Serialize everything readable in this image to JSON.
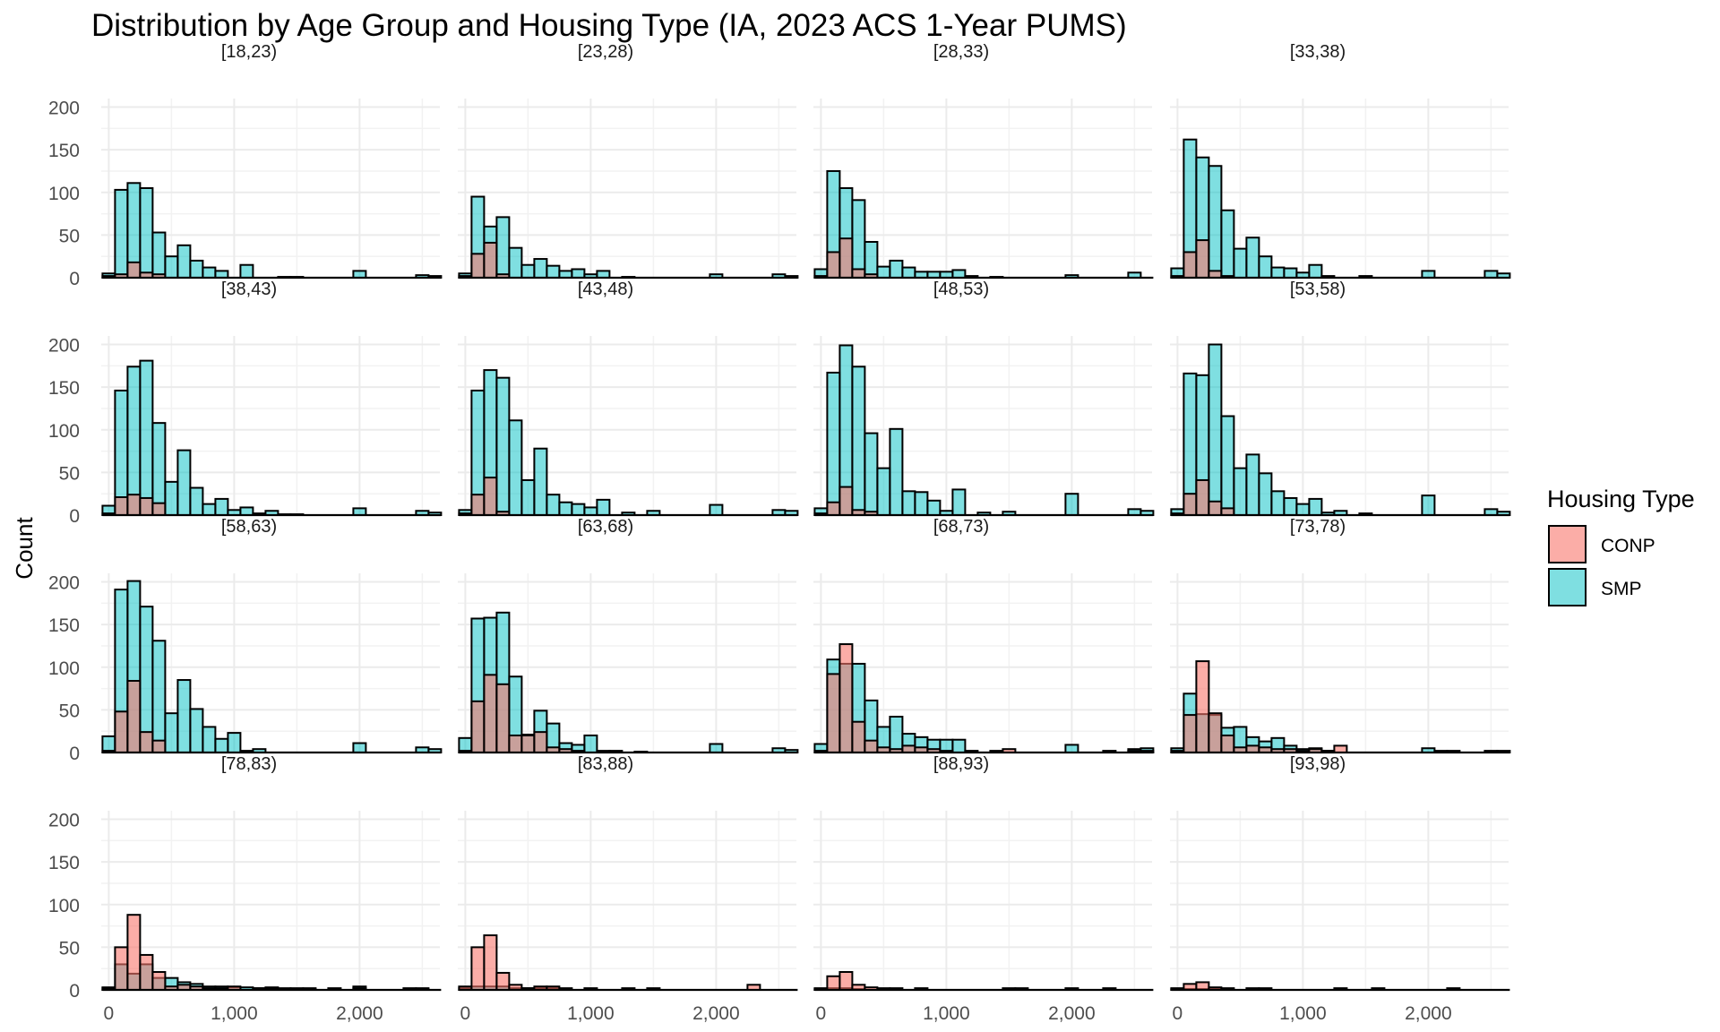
{
  "chart_data": {
    "type": "histogram",
    "title": "Distribution by Age Group and Housing Type (IA, 2023 ACS 1-Year PUMS)",
    "xlabel": "",
    "ylabel": "Count",
    "xlim": [
      -60,
      2640
    ],
    "ylim": [
      0,
      210
    ],
    "x_ticks": [
      0,
      1000,
      2000
    ],
    "x_tick_labels": [
      "0",
      "1,000",
      "2,000"
    ],
    "y_ticks": [
      0,
      50,
      100,
      150,
      200
    ],
    "y_tick_labels": [
      "0",
      "50",
      "100",
      "150",
      "200"
    ],
    "grid": true,
    "layout": {
      "rows": 4,
      "cols": 4
    },
    "bin_width": 100,
    "bin_start": 0,
    "legend": {
      "title": "Housing Type",
      "position": "right",
      "entries": [
        {
          "name": "CONP",
          "color": "#F8766D"
        },
        {
          "name": "SMP",
          "color": "#00BFC4"
        }
      ]
    },
    "colors": {
      "CONP": "#F8766D",
      "SMP": "#00BFC4",
      "outline": "#000000"
    },
    "panels": [
      {
        "label": "[18,23)",
        "series": [
          {
            "name": "SMP",
            "values": [
              5,
              103,
              111,
              105,
              53,
              25,
              38,
              20,
              12,
              8,
              0,
              15,
              0,
              0,
              1,
              1,
              0,
              0,
              0,
              0,
              8,
              0,
              0,
              0,
              0,
              3,
              2
            ]
          },
          {
            "name": "CONP",
            "values": [
              2,
              4,
              18,
              6,
              4,
              0,
              0,
              0,
              0,
              0,
              0,
              0,
              0,
              0,
              0,
              0,
              0,
              0,
              0,
              0,
              0,
              0,
              0,
              0,
              0,
              0,
              0
            ]
          }
        ]
      },
      {
        "label": "[23,28)",
        "series": [
          {
            "name": "SMP",
            "values": [
              5,
              95,
              60,
              71,
              35,
              15,
              22,
              14,
              8,
              10,
              4,
              8,
              0,
              1,
              0,
              0,
              0,
              0,
              0,
              0,
              4,
              0,
              0,
              0,
              0,
              4,
              2
            ]
          },
          {
            "name": "CONP",
            "values": [
              2,
              28,
              41,
              4,
              0,
              0,
              0,
              0,
              0,
              0,
              0,
              0,
              0,
              0,
              0,
              0,
              0,
              0,
              0,
              0,
              0,
              0,
              0,
              0,
              0,
              0,
              0
            ]
          }
        ]
      },
      {
        "label": "[28,33)",
        "series": [
          {
            "name": "SMP",
            "values": [
              10,
              125,
              105,
              91,
              42,
              13,
              20,
              12,
              7,
              7,
              7,
              9,
              2,
              0,
              1,
              0,
              0,
              0,
              0,
              0,
              3,
              0,
              0,
              0,
              0,
              6,
              0
            ]
          },
          {
            "name": "CONP",
            "values": [
              2,
              30,
              46,
              10,
              4,
              0,
              0,
              0,
              0,
              0,
              0,
              0,
              0,
              0,
              0,
              0,
              0,
              0,
              0,
              0,
              0,
              0,
              0,
              0,
              0,
              0,
              0
            ]
          }
        ]
      },
      {
        "label": "[33,38)",
        "series": [
          {
            "name": "SMP",
            "values": [
              11,
              162,
              141,
              131,
              79,
              34,
              47,
              25,
              12,
              11,
              6,
              15,
              2,
              0,
              0,
              2,
              0,
              0,
              0,
              0,
              8,
              0,
              0,
              0,
              0,
              8,
              5
            ]
          },
          {
            "name": "CONP",
            "values": [
              2,
              30,
              44,
              8,
              2,
              0,
              0,
              0,
              0,
              0,
              0,
              0,
              0,
              0,
              0,
              0,
              0,
              0,
              0,
              0,
              0,
              0,
              0,
              0,
              0,
              0,
              0
            ]
          }
        ]
      },
      {
        "label": "[38,43)",
        "series": [
          {
            "name": "SMP",
            "values": [
              11,
              146,
              174,
              181,
              108,
              39,
              76,
              32,
              13,
              19,
              6,
              9,
              2,
              5,
              1,
              1,
              0,
              0,
              0,
              0,
              8,
              0,
              0,
              0,
              0,
              5,
              3
            ]
          },
          {
            "name": "CONP",
            "values": [
              2,
              21,
              24,
              20,
              14,
              0,
              0,
              0,
              0,
              0,
              0,
              0,
              0,
              0,
              0,
              0,
              0,
              0,
              0,
              0,
              0,
              0,
              0,
              0,
              0,
              0,
              0
            ]
          }
        ]
      },
      {
        "label": "[43,48)",
        "series": [
          {
            "name": "SMP",
            "values": [
              6,
              146,
              170,
              161,
              111,
              41,
              78,
              24,
              15,
              13,
              9,
              18,
              0,
              3,
              0,
              5,
              0,
              0,
              0,
              0,
              12,
              0,
              0,
              0,
              0,
              6,
              5
            ]
          },
          {
            "name": "CONP",
            "values": [
              2,
              24,
              44,
              4,
              0,
              0,
              0,
              0,
              0,
              0,
              0,
              0,
              0,
              0,
              0,
              0,
              0,
              0,
              0,
              0,
              0,
              0,
              0,
              0,
              0,
              0,
              0
            ]
          }
        ]
      },
      {
        "label": "[48,53)",
        "series": [
          {
            "name": "SMP",
            "values": [
              8,
              167,
              199,
              174,
              96,
              55,
              101,
              28,
              27,
              17,
              5,
              30,
              0,
              3,
              0,
              4,
              0,
              0,
              0,
              0,
              25,
              0,
              0,
              0,
              0,
              7,
              5
            ]
          },
          {
            "name": "CONP",
            "values": [
              2,
              15,
              33,
              6,
              4,
              0,
              0,
              0,
              0,
              0,
              0,
              0,
              0,
              0,
              0,
              0,
              0,
              0,
              0,
              0,
              0,
              0,
              0,
              0,
              0,
              0,
              0
            ]
          }
        ]
      },
      {
        "label": "[53,58)",
        "series": [
          {
            "name": "SMP",
            "values": [
              7,
              166,
              164,
              200,
              116,
              55,
              71,
              49,
              28,
              20,
              13,
              19,
              3,
              5,
              0,
              2,
              0,
              0,
              0,
              0,
              23,
              0,
              0,
              0,
              0,
              7,
              4
            ]
          },
          {
            "name": "CONP",
            "values": [
              2,
              25,
              41,
              16,
              8,
              0,
              0,
              0,
              0,
              0,
              0,
              0,
              0,
              0,
              0,
              0,
              0,
              0,
              0,
              0,
              0,
              0,
              0,
              0,
              0,
              0,
              0
            ]
          }
        ]
      },
      {
        "label": "[58,63)",
        "series": [
          {
            "name": "SMP",
            "values": [
              19,
              191,
              201,
              171,
              131,
              46,
              85,
              51,
              30,
              16,
              23,
              2,
              4,
              0,
              0,
              0,
              0,
              0,
              0,
              0,
              11,
              0,
              0,
              0,
              0,
              6,
              4
            ]
          },
          {
            "name": "CONP",
            "values": [
              2,
              48,
              84,
              24,
              14,
              0,
              0,
              0,
              0,
              0,
              0,
              0,
              0,
              0,
              0,
              0,
              0,
              0,
              0,
              0,
              0,
              0,
              0,
              0,
              0,
              0,
              0
            ]
          }
        ]
      },
      {
        "label": "[63,68)",
        "series": [
          {
            "name": "SMP",
            "values": [
              17,
              157,
              158,
              164,
              89,
              21,
              49,
              34,
              11,
              9,
              20,
              2,
              2,
              0,
              1,
              0,
              0,
              0,
              0,
              0,
              10,
              0,
              0,
              0,
              0,
              5,
              3
            ]
          },
          {
            "name": "CONP",
            "values": [
              2,
              60,
              91,
              80,
              20,
              20,
              24,
              6,
              4,
              2,
              0,
              0,
              0,
              0,
              0,
              0,
              0,
              0,
              0,
              0,
              0,
              0,
              0,
              0,
              0,
              0,
              0
            ]
          }
        ]
      },
      {
        "label": "[68,73)",
        "series": [
          {
            "name": "SMP",
            "values": [
              10,
              109,
              104,
              104,
              61,
              30,
              42,
              22,
              18,
              15,
              15,
              15,
              2,
              0,
              0,
              0,
              0,
              0,
              0,
              0,
              9,
              0,
              0,
              0,
              0,
              4,
              5
            ]
          },
          {
            "name": "CONP",
            "values": [
              2,
              92,
              127,
              36,
              14,
              6,
              4,
              8,
              6,
              4,
              2,
              0,
              0,
              0,
              2,
              4,
              0,
              0,
              0,
              0,
              0,
              0,
              0,
              2,
              0,
              2,
              2
            ]
          }
        ]
      },
      {
        "label": "[73,78)",
        "series": [
          {
            "name": "SMP",
            "values": [
              5,
              69,
              45,
              44,
              29,
              30,
              18,
              13,
              17,
              8,
              4,
              5,
              2,
              0,
              0,
              0,
              0,
              0,
              0,
              0,
              5,
              0,
              0,
              0,
              0,
              0,
              0
            ]
          },
          {
            "name": "CONP",
            "values": [
              2,
              44,
              107,
              46,
              20,
              6,
              8,
              6,
              4,
              4,
              2,
              4,
              2,
              8,
              0,
              0,
              0,
              0,
              0,
              0,
              0,
              2,
              2,
              0,
              0,
              2,
              2
            ]
          }
        ]
      },
      {
        "label": "[78,83)",
        "series": [
          {
            "name": "SMP",
            "values": [
              3,
              30,
              19,
              30,
              14,
              14,
              9,
              7,
              4,
              4,
              3,
              3,
              2,
              3,
              1,
              1,
              1,
              0,
              0,
              0,
              4,
              0,
              0,
              0,
              0,
              1,
              0
            ]
          },
          {
            "name": "CONP",
            "values": [
              2,
              50,
              88,
              41,
              21,
              4,
              6,
              4,
              2,
              2,
              4,
              0,
              2,
              2,
              2,
              2,
              2,
              0,
              2,
              0,
              2,
              0,
              0,
              0,
              2,
              2,
              0
            ]
          }
        ]
      },
      {
        "label": "[83,88)",
        "series": [
          {
            "name": "SMP",
            "values": [
              2,
              4,
              4,
              4,
              2,
              2,
              2,
              2,
              0,
              0,
              0,
              0,
              0,
              0,
              0,
              0,
              0,
              0,
              0,
              0,
              0,
              0,
              0,
              0,
              0,
              0,
              0
            ]
          },
          {
            "name": "CONP",
            "values": [
              4,
              50,
              64,
              20,
              6,
              2,
              4,
              4,
              2,
              0,
              2,
              0,
              0,
              2,
              0,
              2,
              0,
              0,
              0,
              0,
              0,
              0,
              0,
              6,
              0,
              0,
              0
            ]
          }
        ]
      },
      {
        "label": "[88,93)",
        "series": [
          {
            "name": "SMP",
            "values": [
              1,
              2,
              2,
              1,
              0,
              0,
              0,
              0,
              0,
              0,
              0,
              0,
              0,
              0,
              0,
              0,
              0,
              0,
              0,
              0,
              0,
              0,
              0,
              0,
              0,
              0,
              0
            ]
          },
          {
            "name": "CONP",
            "values": [
              2,
              16,
              21,
              6,
              3,
              2,
              2,
              0,
              2,
              0,
              0,
              0,
              0,
              0,
              0,
              2,
              2,
              0,
              0,
              0,
              2,
              0,
              0,
              2,
              0,
              0,
              0
            ]
          }
        ]
      },
      {
        "label": "[93,98)",
        "series": [
          {
            "name": "SMP",
            "values": [
              1,
              1,
              1,
              1,
              0,
              0,
              0,
              0,
              0,
              0,
              0,
              0,
              0,
              0,
              0,
              0,
              0,
              0,
              0,
              0,
              0,
              0,
              0,
              0,
              0,
              0,
              0
            ]
          },
          {
            "name": "CONP",
            "values": [
              2,
              7,
              9,
              3,
              2,
              0,
              2,
              2,
              0,
              0,
              0,
              0,
              0,
              2,
              0,
              0,
              2,
              0,
              0,
              0,
              0,
              0,
              2,
              0,
              0,
              0,
              0
            ]
          }
        ]
      }
    ]
  }
}
